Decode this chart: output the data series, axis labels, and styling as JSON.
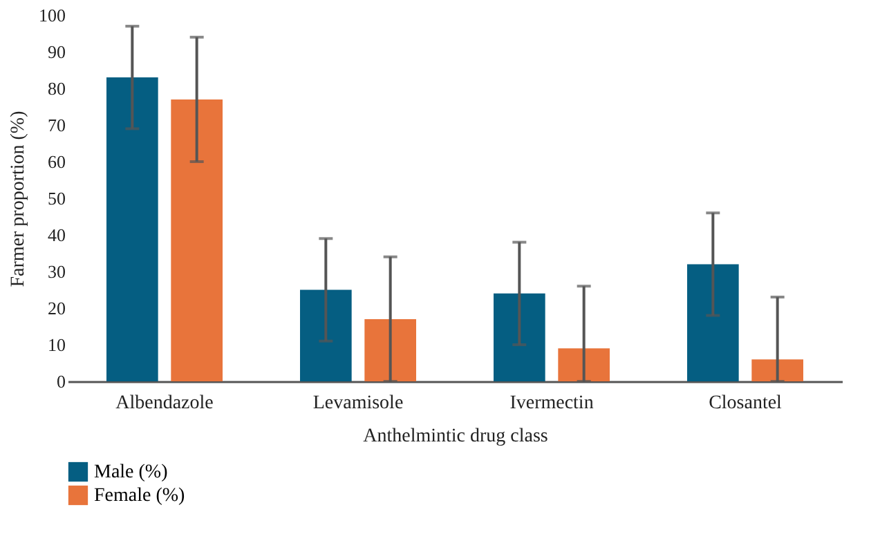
{
  "chart_data": {
    "type": "bar",
    "xlabel": "Anthelmintic drug class",
    "ylabel": "Farmer proportion (%)",
    "categories": [
      "Albendazole",
      "Levamisole",
      "Ivermectin",
      "Closantel"
    ],
    "series": [
      {
        "name": "Male (%)",
        "color": "#055e82",
        "values": [
          83,
          25,
          24,
          32
        ],
        "errors": [
          [
            69,
            97
          ],
          [
            11,
            39
          ],
          [
            10,
            38
          ],
          [
            18,
            46
          ]
        ]
      },
      {
        "name": "Female (%)",
        "color": "#e8743b",
        "values": [
          77,
          17,
          9,
          6
        ],
        "errors": [
          [
            60,
            94
          ],
          [
            0,
            34
          ],
          [
            0,
            26
          ],
          [
            0,
            23
          ]
        ]
      }
    ],
    "ylim": [
      0,
      100
    ],
    "yticks": [
      0,
      10,
      20,
      30,
      40,
      50,
      60,
      70,
      80,
      90,
      100
    ],
    "grid": false,
    "legend": "bottom left"
  }
}
